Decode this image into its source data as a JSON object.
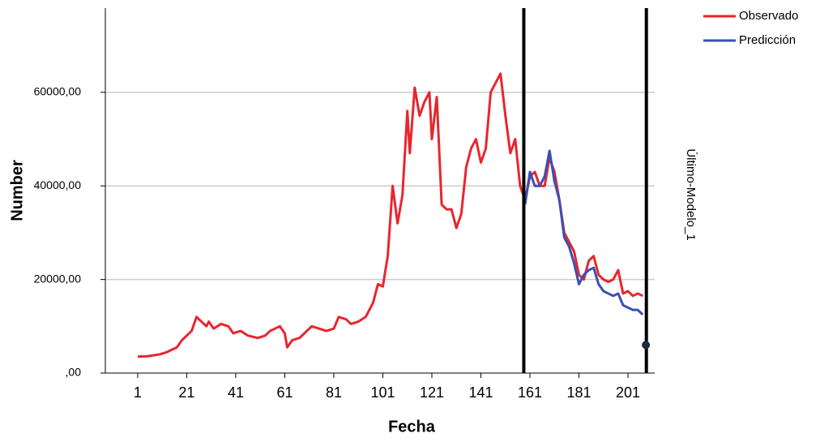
{
  "chart_data": {
    "type": "line",
    "xlabel": "Fecha",
    "ylabel": "Number",
    "panel_label": "Último-Modelo_1",
    "xlim": [
      -12.2,
      211.9
    ],
    "ylim": [
      0,
      78000
    ],
    "xticks": [
      1,
      21,
      41,
      61,
      81,
      101,
      121,
      141,
      161,
      181,
      201
    ],
    "yticks": [
      {
        "value": 0,
        "label": ",00"
      },
      {
        "value": 20000,
        "label": "20000,00"
      },
      {
        "value": 40000,
        "label": "40000,00"
      },
      {
        "value": 60000,
        "label": "60000,00"
      }
    ],
    "grid": true,
    "legend": "top-right",
    "reference_lines": [
      158.5,
      208.5
    ],
    "markers": [
      {
        "x": 208.3,
        "y": 6000
      }
    ],
    "series": [
      {
        "name": "Observado",
        "color": "#e8262e",
        "x": [
          1,
          5,
          10,
          13,
          15,
          17,
          19,
          21,
          23,
          25,
          27,
          29,
          30,
          32,
          35,
          38,
          40,
          43,
          46,
          50,
          53,
          55,
          57,
          59,
          61,
          62,
          64,
          67,
          70,
          72,
          75,
          78,
          81,
          83,
          86,
          88,
          91,
          94,
          97,
          99,
          101,
          103,
          105,
          107,
          109,
          111,
          112,
          114,
          116,
          118,
          120,
          121,
          123,
          125,
          127,
          129,
          131,
          133,
          135,
          137,
          139,
          141,
          143,
          145,
          147,
          149,
          151,
          153,
          155,
          157,
          159,
          161,
          163,
          165,
          167,
          169,
          171,
          173,
          175,
          177,
          179,
          181,
          183,
          185,
          187,
          189,
          191,
          193,
          195,
          197,
          199,
          201,
          203,
          205,
          207
        ],
        "values": [
          3500,
          3600,
          4000,
          4500,
          5000,
          5500,
          7000,
          8000,
          9000,
          12000,
          11000,
          10000,
          11000,
          9500,
          10500,
          10000,
          8500,
          9000,
          8000,
          7500,
          8000,
          9000,
          9500,
          10000,
          8500,
          5500,
          7000,
          7500,
          9000,
          10000,
          9500,
          9000,
          9500,
          12000,
          11500,
          10500,
          11000,
          12000,
          15000,
          19000,
          18500,
          25000,
          40000,
          32000,
          38000,
          56000,
          47000,
          61000,
          55000,
          58000,
          60000,
          50000,
          59000,
          36000,
          35000,
          35000,
          31000,
          34000,
          44000,
          48000,
          50000,
          45000,
          48000,
          60000,
          62000,
          64000,
          55000,
          47000,
          50000,
          40000,
          37000,
          42000,
          43000,
          40000,
          40000,
          46000,
          43000,
          37000,
          30000,
          28000,
          26000,
          21000,
          20000,
          24000,
          25000,
          21000,
          20000,
          19500,
          20000,
          22000,
          17000,
          17500,
          16500,
          17000,
          16500
        ]
      },
      {
        "name": "Predicción",
        "color": "#3a4fb4",
        "x": [
          159,
          161,
          163,
          165,
          167,
          169,
          171,
          173,
          175,
          177,
          179,
          181,
          183,
          185,
          187,
          189,
          191,
          193,
          195,
          197,
          199,
          201,
          203,
          205,
          207
        ],
        "values": [
          36000,
          43000,
          40000,
          40000,
          42000,
          47500,
          41000,
          37000,
          29000,
          27000,
          23500,
          19000,
          21000,
          22000,
          22500,
          19000,
          17500,
          17000,
          16500,
          17000,
          14500,
          14000,
          13500,
          13500,
          12500
        ]
      }
    ]
  }
}
